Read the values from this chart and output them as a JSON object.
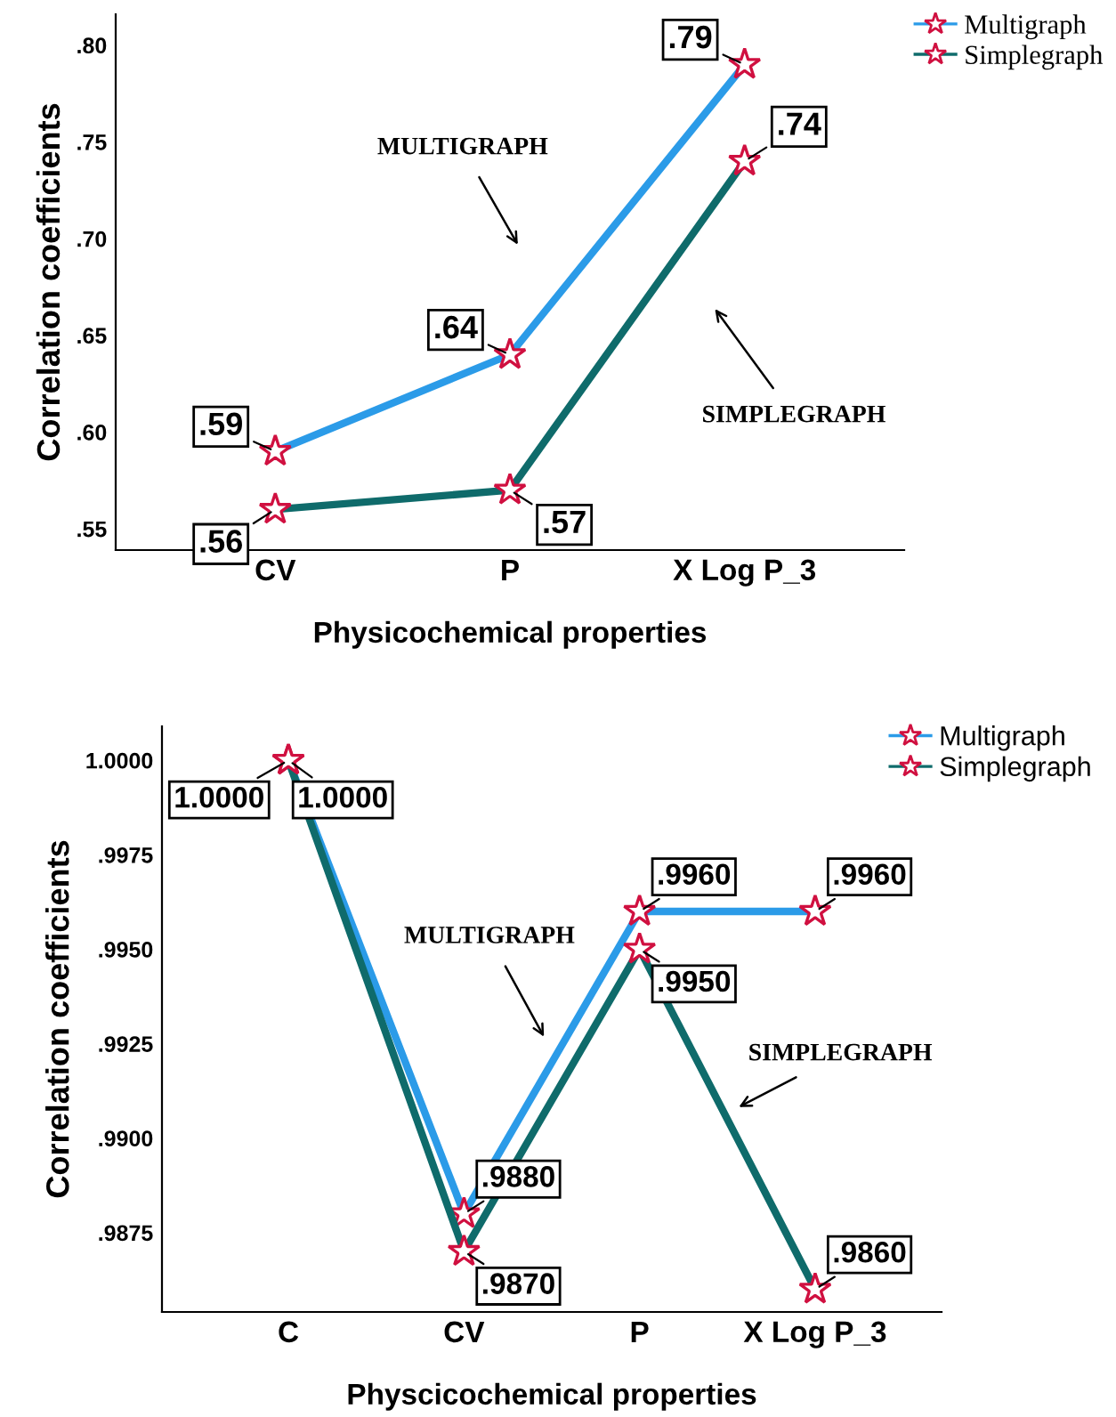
{
  "chart_data": [
    {
      "type": "line",
      "xlabel": "Physicochemical properties",
      "ylabel": "Correlation coefficients",
      "categories": [
        "CV",
        "P",
        "X Log P_3"
      ],
      "series": [
        {
          "name": "Multigraph",
          "color": "#2b9be8",
          "values": [
            0.59,
            0.64,
            0.79
          ],
          "value_labels": [
            ".59",
            ".64",
            ".79"
          ]
        },
        {
          "name": "Simplegraph",
          "color": "#0f6b6b",
          "values": [
            0.56,
            0.57,
            0.74
          ],
          "value_labels": [
            ".56",
            ".57",
            ".74"
          ]
        }
      ],
      "ylim": [
        0.539,
        0.816
      ],
      "yticks": [
        {
          "value": 0.55,
          "label": ".55"
        },
        {
          "value": 0.6,
          "label": ".60"
        },
        {
          "value": 0.65,
          "label": ".65"
        },
        {
          "value": 0.7,
          "label": ".70"
        },
        {
          "value": 0.75,
          "label": ".75"
        },
        {
          "value": 0.8,
          "label": ".80"
        }
      ],
      "annotations": [
        "MULTIGRAPH",
        "SIMPLEGRAPH"
      ],
      "legend": "top right",
      "marker": "star",
      "line_style": "solid",
      "grid": false
    },
    {
      "type": "line",
      "xlabel": "Physcicochemical properties",
      "ylabel": "Correlation coefficients",
      "categories": [
        "C",
        "CV",
        "P",
        "X Log P_3"
      ],
      "series": [
        {
          "name": "Multigraph",
          "color": "#2b9be8",
          "values": [
            1.0,
            0.988,
            0.996,
            0.996
          ],
          "value_labels": [
            "1.0000",
            ".9880",
            ".9960",
            ".9960"
          ]
        },
        {
          "name": "Simplegraph",
          "color": "#0f6b6b",
          "values": [
            1.0,
            0.987,
            0.995,
            0.986
          ],
          "value_labels": [
            "1.0000",
            ".9870",
            ".9950",
            ".9860"
          ]
        }
      ],
      "ylim": [
        0.9854,
        1.0009
      ],
      "yticks": [
        {
          "value": 0.9875,
          "label": ".9875"
        },
        {
          "value": 0.99,
          "label": ".9900"
        },
        {
          "value": 0.9925,
          "label": ".9925"
        },
        {
          "value": 0.995,
          "label": ".9950"
        },
        {
          "value": 0.9975,
          "label": ".9975"
        },
        {
          "value": 1.0,
          "label": "1.0000"
        }
      ],
      "annotations": [
        "MULTIGRAPH",
        "SIMPLEGRAPH"
      ],
      "legend": "top right",
      "marker": "star",
      "line_style": "solid",
      "grid": false
    }
  ]
}
